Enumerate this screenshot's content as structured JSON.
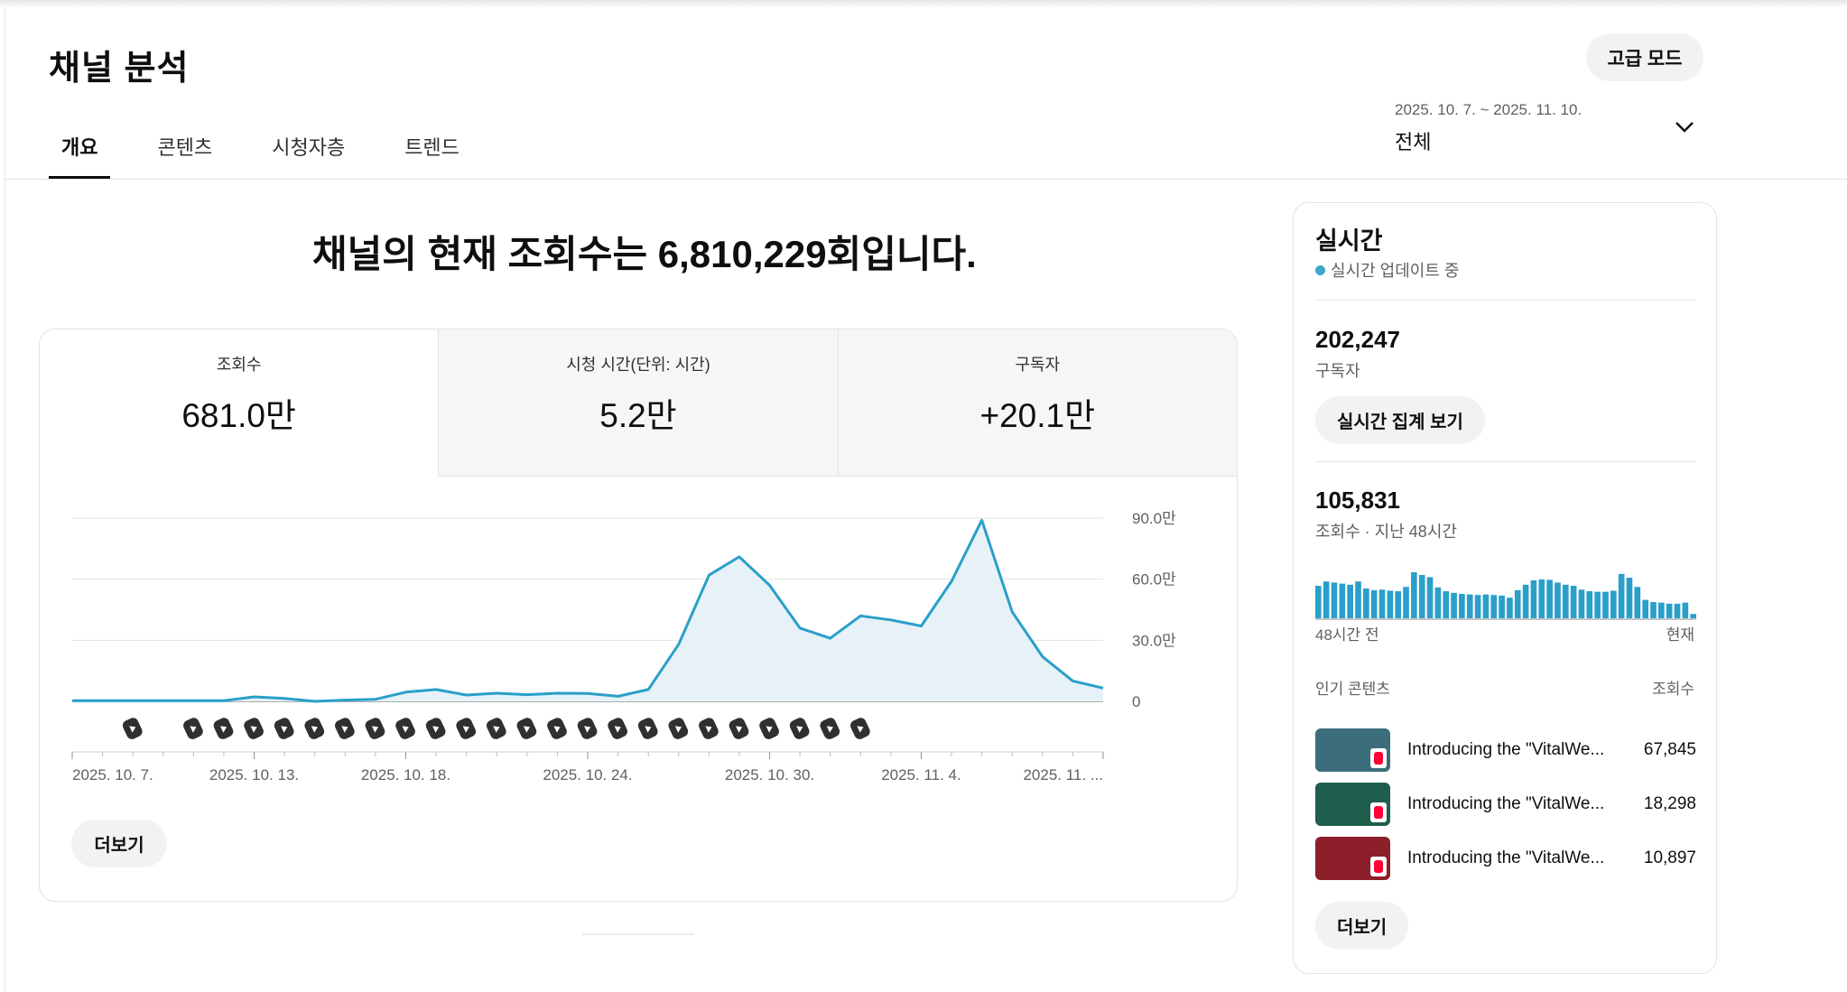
{
  "header": {
    "title": "채널 분석",
    "advanced_mode": "고급 모드"
  },
  "tabs": [
    {
      "label": "개요",
      "active": true
    },
    {
      "label": "콘텐츠",
      "active": false
    },
    {
      "label": "시청자층",
      "active": false
    },
    {
      "label": "트렌드",
      "active": false
    }
  ],
  "date_picker": {
    "range": "2025. 10. 7. ~ 2025. 11. 10.",
    "label": "전체"
  },
  "headline": "채널의 현재 조회수는 6,810,229회입니다.",
  "metrics": [
    {
      "label": "조회수",
      "value": "681.0만",
      "active": true
    },
    {
      "label": "시청 시간(단위: 시간)",
      "value": "5.2만",
      "active": false
    },
    {
      "label": "구독자",
      "value": "+20.1만",
      "active": false
    }
  ],
  "chart_data": {
    "type": "area",
    "series": [
      {
        "values": [
          0.3,
          0.3,
          0.3,
          0.3,
          0.3,
          0.3,
          2.2,
          1.4,
          0,
          0.6,
          1.0,
          4.5,
          5.8,
          3.1,
          4.0,
          3.3,
          4.0,
          3.9,
          2.5,
          5.8,
          28,
          62,
          71,
          57,
          36,
          31,
          42,
          40,
          37,
          59,
          89,
          44,
          22,
          10,
          6.5
        ]
      }
    ],
    "y_ticks": [
      "90.0만",
      "60.0만",
      "30.0만",
      "0"
    ],
    "y_tick_values": [
      90,
      60,
      30,
      0
    ],
    "ylim": [
      0,
      95
    ],
    "x_ticks": [
      "2025. 10. 7.",
      "2025. 10. 13.",
      "2025. 10. 18.",
      "2025. 10. 24.",
      "2025. 10. 30.",
      "2025. 11. 4.",
      "2025. 11. ..."
    ],
    "x_tick_days": [
      0,
      6,
      11,
      17,
      23,
      28,
      34
    ],
    "upload_marker_days": [
      2,
      4,
      5,
      6,
      7,
      8,
      9,
      10,
      11,
      12,
      13,
      14,
      15,
      16,
      17,
      18,
      19,
      20,
      21,
      22,
      23,
      24,
      25,
      26
    ],
    "upload_icon": "shorts-icon",
    "colors": {
      "line": "#2a9fc9",
      "fill": "#e6f2f8",
      "grid": "#e5e5e5",
      "baseline": "#909090"
    }
  },
  "main_more": "더보기",
  "realtime": {
    "title": "실시간",
    "status": "실시간 업데이트 중",
    "status_color": "#3ea6cc",
    "subscribers": "202,247",
    "subscribers_label": "구독자",
    "live_count_button": "실시간 집계 보기",
    "views_48h": "105,831",
    "views_48h_label": "조회수 · 지난 48시간",
    "bars": [
      60,
      68,
      66,
      64,
      62,
      68,
      55,
      52,
      53,
      51,
      50,
      58,
      85,
      80,
      76,
      57,
      50,
      47,
      45,
      44,
      43,
      44,
      43,
      42,
      38,
      52,
      62,
      70,
      72,
      71,
      66,
      62,
      60,
      53,
      50,
      49,
      49,
      51,
      82,
      75,
      58,
      34,
      30,
      29,
      27,
      27,
      29,
      8
    ],
    "axis_start": "48시간 전",
    "axis_end": "현재",
    "top_header": "인기 콘텐츠",
    "top_views_header": "조회수",
    "top_items": [
      {
        "title": "Introducing the \"VitalWe...",
        "views": "67,845",
        "thumb_color": "#3b6e7a"
      },
      {
        "title": "Introducing the \"VitalWe...",
        "views": "18,298",
        "thumb_color": "#1f5e4c"
      },
      {
        "title": "Introducing the \"VitalWe...",
        "views": "10,897",
        "thumb_color": "#8c1f2a"
      }
    ],
    "more": "더보기"
  }
}
